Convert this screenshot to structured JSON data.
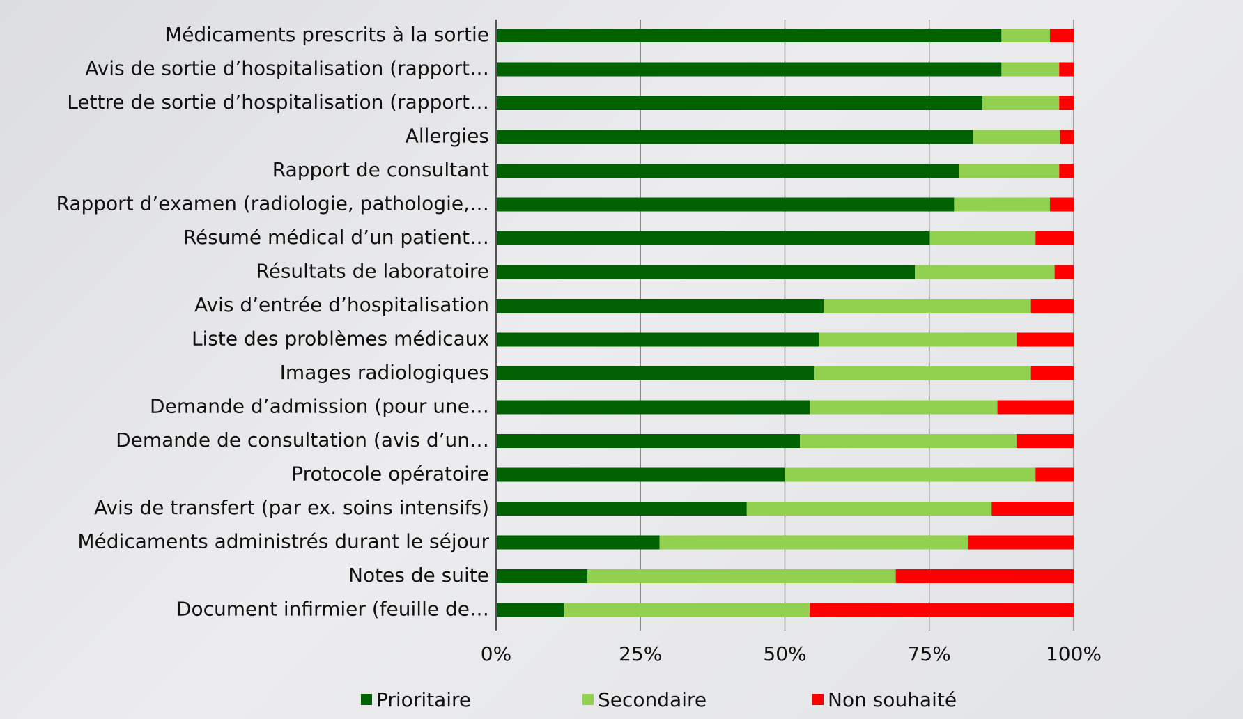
{
  "chart_data": {
    "type": "stacked_barh",
    "categories": [
      "Médicaments prescrits à la sortie",
      "Avis de sortie d’hospitalisation (rapport…",
      "Lettre de sortie d’hospitalisation (rapport…",
      "Allergies",
      "Rapport de consultant",
      "Rapport d’examen (radiologie, pathologie,…",
      "Résumé médical d’un patient…",
      "Résultats de laboratoire",
      "Avis d’entrée d’hospitalisation",
      "Liste des problèmes médicaux",
      "Images radiologiques",
      "Demande d’admission (pour une…",
      "Demande de consultation (avis d’un…",
      "Protocole opératoire",
      "Avis de transfert (par ex. soins intensifs)",
      "Médicaments administrés durant le séjour",
      "Notes de suite",
      "Document infirmier (feuille de…"
    ],
    "series": [
      {
        "name": "Prioritaire",
        "color": "#006100",
        "values": [
          87.5,
          87.5,
          84.2,
          82.6,
          80.1,
          79.3,
          75.1,
          72.5,
          56.7,
          55.9,
          55.1,
          54.3,
          52.6,
          50,
          43.4,
          28.3,
          15.8,
          11.7
        ]
      },
      {
        "name": "Secondaire",
        "color": "#92d050",
        "values": [
          8.4,
          10,
          13.3,
          15,
          17.4,
          16.6,
          18.3,
          24.2,
          35.9,
          34.2,
          37.5,
          32.5,
          37.5,
          43.4,
          42.4,
          53.4,
          53.4,
          42.6
        ]
      },
      {
        "name": "Non souhaité",
        "color": "#ff0000",
        "values": [
          4.1,
          2.5,
          2.5,
          2.5,
          2.5,
          4.1,
          6.6,
          3.3,
          7.4,
          9.9,
          7.4,
          13.2,
          9.9,
          6.6,
          14.2,
          18.3,
          30.8,
          45.7
        ]
      }
    ],
    "xlim": [
      0,
      100
    ],
    "xticks": [
      {
        "value": 0,
        "label": "0%"
      },
      {
        "value": 25,
        "label": "25%"
      },
      {
        "value": 50,
        "label": "50%"
      },
      {
        "value": 75,
        "label": "75%"
      },
      {
        "value": 100,
        "label": "100%"
      }
    ],
    "grid": true,
    "legend": "bottom"
  }
}
